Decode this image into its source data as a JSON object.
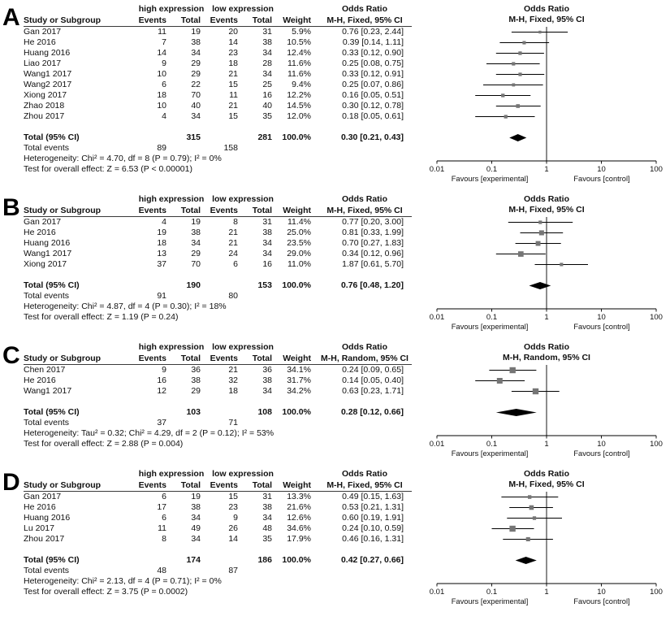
{
  "figure": {
    "columns": [
      "Study or Subgroup",
      "Events",
      "Total",
      "Events",
      "Total",
      "Weight"
    ],
    "or_header": "Odds Ratio",
    "total_label": "Total (95% CI)",
    "total_events_label": "Total events",
    "axis_ticks": [
      0.01,
      0.1,
      1,
      10,
      100
    ],
    "favours_left": "Favours [experimental]",
    "favours_right": "Favours [control]",
    "colors": {
      "marker": "#757575",
      "diamond": "#000000",
      "line": "#000000"
    }
  },
  "chart_data": {
    "type": "forest",
    "scale": "log10",
    "x_range": [
      0.01,
      100
    ],
    "panels": [
      {
        "letter": "A",
        "group1_header": "high expression",
        "group2_header": "low expression",
        "method_header": "M-H, Fixed, 95% CI",
        "studies": [
          {
            "name": "Gan 2017",
            "events1": 11,
            "total1": 19,
            "events2": 20,
            "total2": 31,
            "weight": 5.9,
            "or": 0.76,
            "ci_low": 0.23,
            "ci_high": 2.44
          },
          {
            "name": "He 2016",
            "events1": 7,
            "total1": 38,
            "events2": 14,
            "total2": 38,
            "weight": 10.5,
            "or": 0.39,
            "ci_low": 0.14,
            "ci_high": 1.11
          },
          {
            "name": "Huang 2016",
            "events1": 14,
            "total1": 34,
            "events2": 23,
            "total2": 34,
            "weight": 12.4,
            "or": 0.33,
            "ci_low": 0.12,
            "ci_high": 0.9
          },
          {
            "name": "Liao 2017",
            "events1": 9,
            "total1": 29,
            "events2": 18,
            "total2": 28,
            "weight": 11.6,
            "or": 0.25,
            "ci_low": 0.08,
            "ci_high": 0.75
          },
          {
            "name": "Wang1 2017",
            "events1": 10,
            "total1": 29,
            "events2": 21,
            "total2": 34,
            "weight": 11.6,
            "or": 0.33,
            "ci_low": 0.12,
            "ci_high": 0.91
          },
          {
            "name": "Wang2 2017",
            "events1": 6,
            "total1": 22,
            "events2": 15,
            "total2": 25,
            "weight": 9.4,
            "or": 0.25,
            "ci_low": 0.07,
            "ci_high": 0.86
          },
          {
            "name": "Xiong 2017",
            "events1": 18,
            "total1": 70,
            "events2": 11,
            "total2": 16,
            "weight": 12.2,
            "or": 0.16,
            "ci_low": 0.05,
            "ci_high": 0.51
          },
          {
            "name": "Zhao 2018",
            "events1": 10,
            "total1": 40,
            "events2": 21,
            "total2": 40,
            "weight": 14.5,
            "or": 0.3,
            "ci_low": 0.12,
            "ci_high": 0.78
          },
          {
            "name": "Zhou 2017",
            "events1": 4,
            "total1": 34,
            "events2": 15,
            "total2": 35,
            "weight": 12.0,
            "or": 0.18,
            "ci_low": 0.05,
            "ci_high": 0.61
          }
        ],
        "total": {
          "total1": 315,
          "total2": 281,
          "weight": 100.0,
          "or": 0.3,
          "ci_low": 0.21,
          "ci_high": 0.43
        },
        "total_events": {
          "events1": 89,
          "events2": 158
        },
        "heterogeneity": "Heterogeneity: Chi² = 4.70, df = 8 (P = 0.79); I² = 0%",
        "overall_effect": "Test for overall effect: Z = 6.53 (P < 0.00001)"
      },
      {
        "letter": "B",
        "group1_header": "high expression",
        "group2_header": "low expression",
        "method_header": "M-H, Fixed, 95% CI",
        "studies": [
          {
            "name": "Gan 2017",
            "events1": 4,
            "total1": 19,
            "events2": 8,
            "total2": 31,
            "weight": 11.4,
            "or": 0.77,
            "ci_low": 0.2,
            "ci_high": 3.0
          },
          {
            "name": "He 2016",
            "events1": 19,
            "total1": 38,
            "events2": 21,
            "total2": 38,
            "weight": 25.0,
            "or": 0.81,
            "ci_low": 0.33,
            "ci_high": 1.99
          },
          {
            "name": "Huang 2016",
            "events1": 18,
            "total1": 34,
            "events2": 21,
            "total2": 34,
            "weight": 23.5,
            "or": 0.7,
            "ci_low": 0.27,
            "ci_high": 1.83
          },
          {
            "name": "Wang1 2017",
            "events1": 13,
            "total1": 29,
            "events2": 24,
            "total2": 34,
            "weight": 29.0,
            "or": 0.34,
            "ci_low": 0.12,
            "ci_high": 0.96
          },
          {
            "name": "Xiong 2017",
            "events1": 37,
            "total1": 70,
            "events2": 6,
            "total2": 16,
            "weight": 11.0,
            "or": 1.87,
            "ci_low": 0.61,
            "ci_high": 5.7
          }
        ],
        "total": {
          "total1": 190,
          "total2": 153,
          "weight": 100.0,
          "or": 0.76,
          "ci_low": 0.48,
          "ci_high": 1.2
        },
        "total_events": {
          "events1": 91,
          "events2": 80
        },
        "heterogeneity": "Heterogeneity: Chi² = 4.87, df = 4 (P = 0.30); I² = 18%",
        "overall_effect": "Test for overall effect: Z = 1.19 (P = 0.24)"
      },
      {
        "letter": "C",
        "group1_header": "high expression",
        "group2_header": "low expression",
        "method_header": "M-H, Random, 95% CI",
        "studies": [
          {
            "name": "Chen 2017",
            "events1": 9,
            "total1": 36,
            "events2": 21,
            "total2": 36,
            "weight": 34.1,
            "or": 0.24,
            "ci_low": 0.09,
            "ci_high": 0.65
          },
          {
            "name": "He 2016",
            "events1": 16,
            "total1": 38,
            "events2": 32,
            "total2": 38,
            "weight": 31.7,
            "or": 0.14,
            "ci_low": 0.05,
            "ci_high": 0.4
          },
          {
            "name": "Wang1 2017",
            "events1": 12,
            "total1": 29,
            "events2": 18,
            "total2": 34,
            "weight": 34.2,
            "or": 0.63,
            "ci_low": 0.23,
            "ci_high": 1.71
          }
        ],
        "total": {
          "total1": 103,
          "total2": 108,
          "weight": 100.0,
          "or": 0.28,
          "ci_low": 0.12,
          "ci_high": 0.66
        },
        "total_events": {
          "events1": 37,
          "events2": 71
        },
        "heterogeneity": "Heterogeneity: Tau² = 0.32; Chi² = 4.29, df = 2 (P = 0.12); I² = 53%",
        "overall_effect": "Test for overall effect: Z = 2.88 (P = 0.004)"
      },
      {
        "letter": "D",
        "group1_header": "high expression",
        "group2_header": "low expression",
        "method_header": "M-H, Fixed, 95% CI",
        "studies": [
          {
            "name": "Gan 2017",
            "events1": 6,
            "total1": 19,
            "events2": 15,
            "total2": 31,
            "weight": 13.3,
            "or": 0.49,
            "ci_low": 0.15,
            "ci_high": 1.63
          },
          {
            "name": "He 2016",
            "events1": 17,
            "total1": 38,
            "events2": 23,
            "total2": 38,
            "weight": 21.6,
            "or": 0.53,
            "ci_low": 0.21,
            "ci_high": 1.31
          },
          {
            "name": "Huang 2016",
            "events1": 6,
            "total1": 34,
            "events2": 9,
            "total2": 34,
            "weight": 12.6,
            "or": 0.6,
            "ci_low": 0.19,
            "ci_high": 1.91
          },
          {
            "name": "Lu 2017",
            "events1": 11,
            "total1": 49,
            "events2": 26,
            "total2": 48,
            "weight": 34.6,
            "or": 0.24,
            "ci_low": 0.1,
            "ci_high": 0.59
          },
          {
            "name": "Zhou 2017",
            "events1": 8,
            "total1": 34,
            "events2": 14,
            "total2": 35,
            "weight": 17.9,
            "or": 0.46,
            "ci_low": 0.16,
            "ci_high": 1.31
          }
        ],
        "total": {
          "total1": 174,
          "total2": 186,
          "weight": 100.0,
          "or": 0.42,
          "ci_low": 0.27,
          "ci_high": 0.66
        },
        "total_events": {
          "events1": 48,
          "events2": 87
        },
        "heterogeneity": "Heterogeneity: Chi² = 2.13, df = 4 (P = 0.71); I² = 0%",
        "overall_effect": "Test for overall effect: Z = 3.75 (P = 0.0002)"
      }
    ]
  }
}
